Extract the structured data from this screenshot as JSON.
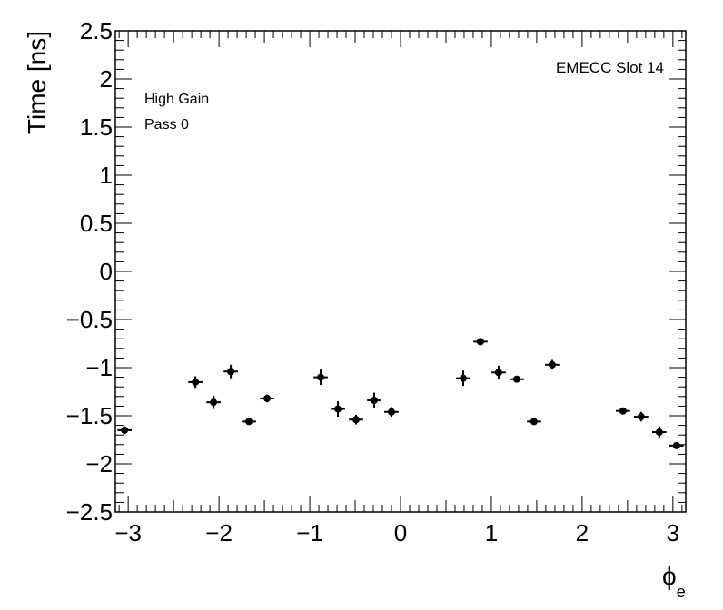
{
  "chart_data": {
    "type": "scatter",
    "title": "",
    "xlabel": "ϕ",
    "xlabel_sub": "e",
    "ylabel": "Time [ns]",
    "xlim": [
      -3.1416,
      3.1416
    ],
    "ylim": [
      -2.5,
      2.5
    ],
    "x_ticks": [
      -3,
      -2,
      -1,
      0,
      1,
      2,
      3
    ],
    "x_tick_labels": [
      "−3",
      "−2",
      "−1",
      "0",
      "1",
      "2",
      "3"
    ],
    "y_ticks": [
      -2.5,
      -2,
      -1.5,
      -1,
      -0.5,
      0,
      0.5,
      1,
      1.5,
      2,
      2.5
    ],
    "y_tick_labels": [
      "−2.5",
      "−2",
      "−1.5",
      "−1",
      "−0.5",
      "0",
      "0.5",
      "1",
      "1.5",
      "2",
      "2.5"
    ],
    "grid": false,
    "annotations": {
      "gain": "High Gain",
      "pass": "Pass 0",
      "slot": "EMECC Slot 14"
    },
    "x_half_width": 0.0785,
    "series": [
      {
        "points": [
          {
            "x": -3.04,
            "y": -1.65,
            "yerr": 0.04
          },
          {
            "x": -2.26,
            "y": -1.15,
            "yerr": 0.06
          },
          {
            "x": -2.06,
            "y": -1.36,
            "yerr": 0.07
          },
          {
            "x": -1.87,
            "y": -1.04,
            "yerr": 0.07
          },
          {
            "x": -1.67,
            "y": -1.56,
            "yerr": 0.02
          },
          {
            "x": -1.47,
            "y": -1.32,
            "yerr": 0.04
          },
          {
            "x": -0.88,
            "y": -1.1,
            "yerr": 0.08
          },
          {
            "x": -0.69,
            "y": -1.43,
            "yerr": 0.08
          },
          {
            "x": -0.49,
            "y": -1.54,
            "yerr": 0.05
          },
          {
            "x": -0.29,
            "y": -1.34,
            "yerr": 0.08
          },
          {
            "x": -0.1,
            "y": -1.46,
            "yerr": 0.05
          },
          {
            "x": 0.69,
            "y": -1.11,
            "yerr": 0.08
          },
          {
            "x": 0.88,
            "y": -0.73,
            "yerr": 0.03
          },
          {
            "x": 1.08,
            "y": -1.05,
            "yerr": 0.07
          },
          {
            "x": 1.28,
            "y": -1.12,
            "yerr": 0.03
          },
          {
            "x": 1.47,
            "y": -1.56,
            "yerr": 0.02
          },
          {
            "x": 1.67,
            "y": -0.97,
            "yerr": 0.05
          },
          {
            "x": 2.45,
            "y": -1.45,
            "yerr": 0.03
          },
          {
            "x": 2.65,
            "y": -1.51,
            "yerr": 0.05
          },
          {
            "x": 2.85,
            "y": -1.67,
            "yerr": 0.06
          },
          {
            "x": 3.04,
            "y": -1.81,
            "yerr": 0.03
          }
        ]
      }
    ]
  }
}
